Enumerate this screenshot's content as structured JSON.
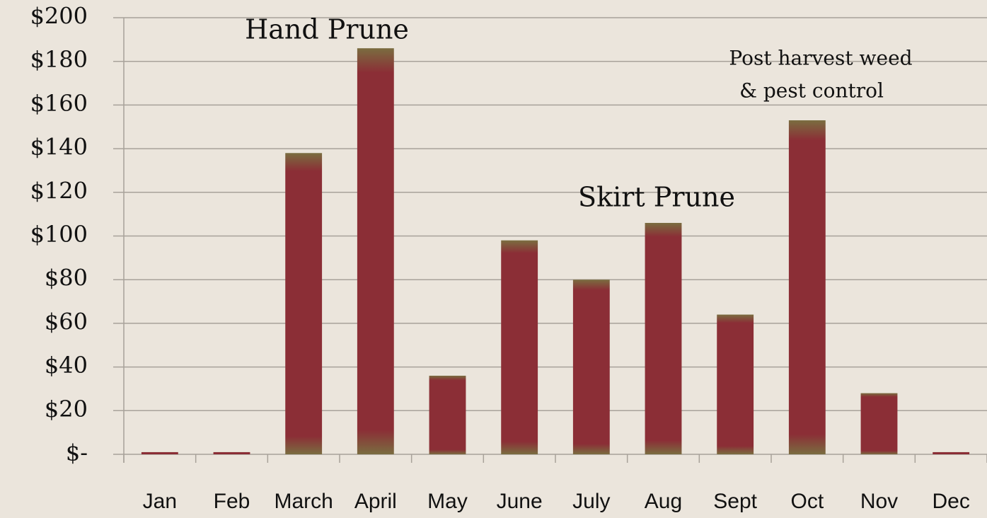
{
  "chart_data": {
    "type": "bar",
    "categories": [
      "Jan",
      "Feb",
      "March",
      "April",
      "May",
      "June",
      "July",
      "Aug",
      "Sept",
      "Oct",
      "Nov",
      "Dec"
    ],
    "values": [
      1,
      1,
      138,
      186,
      36,
      98,
      80,
      106,
      64,
      153,
      28,
      1
    ],
    "color": "#8b2e36",
    "ylim": [
      0,
      200
    ],
    "yticks": [
      {
        "value": 0,
        "label": "$-"
      },
      {
        "value": 20,
        "label": "$20"
      },
      {
        "value": 40,
        "label": "$40"
      },
      {
        "value": 60,
        "label": "$60"
      },
      {
        "value": 80,
        "label": "$80"
      },
      {
        "value": 100,
        "label": "$100"
      },
      {
        "value": 120,
        "label": "$120"
      },
      {
        "value": 140,
        "label": "$140"
      },
      {
        "value": 160,
        "label": "$160"
      },
      {
        "value": 180,
        "label": "$180"
      },
      {
        "value": 200,
        "label": "$200"
      }
    ],
    "grid": true,
    "annotations": [
      "Hand Prune",
      "Skirt Prune",
      "Post harvest weed",
      "& pest control"
    ]
  }
}
